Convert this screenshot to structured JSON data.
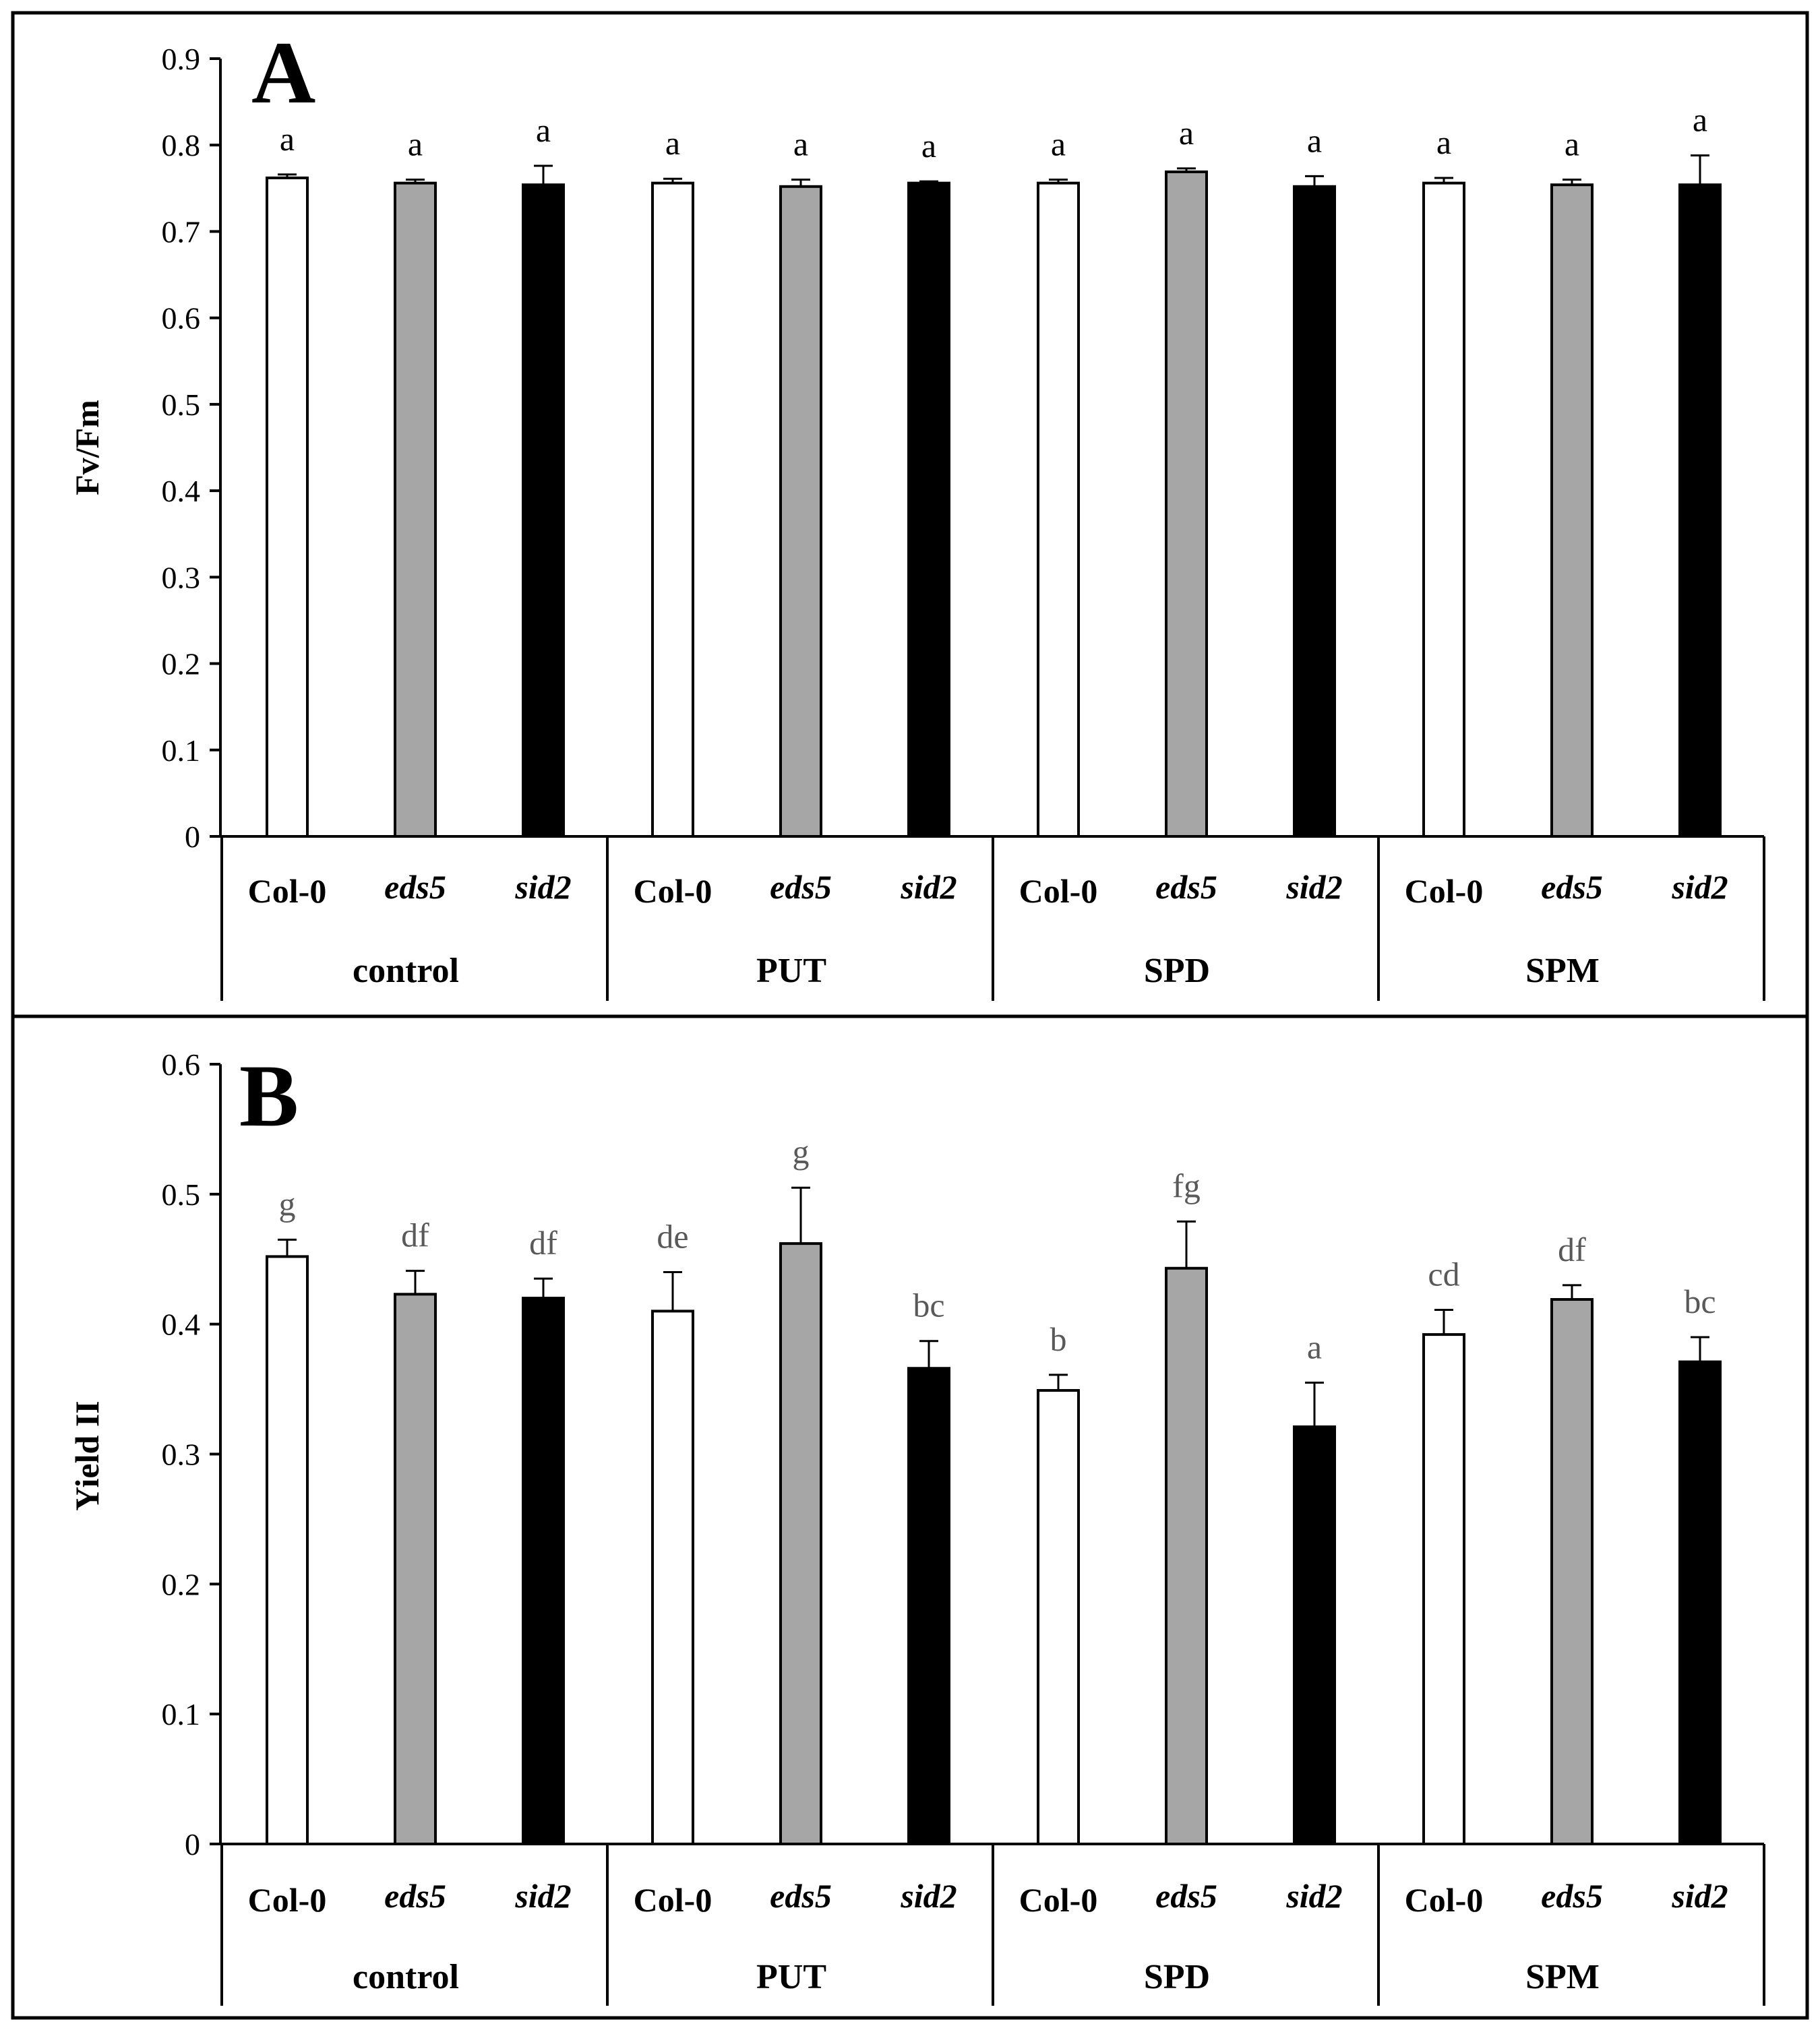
{
  "colors": {
    "Col-0": "#ffffff",
    "eds5": "#a6a6a6",
    "sid2": "#000000",
    "frame": "#000000",
    "sig_A": "#000000",
    "sig_B": "#595959"
  },
  "chart_data": [
    {
      "type": "bar",
      "panel_label": "A",
      "ylabel": "Fv/Fm",
      "ylim": [
        0,
        0.9
      ],
      "yticks": [
        "0",
        "0.1",
        "0.2",
        "0.3",
        "0.4",
        "0.5",
        "0.6",
        "0.7",
        "0.8",
        "0.9"
      ],
      "groups": [
        "control",
        "PUT",
        "SPD",
        "SPM"
      ],
      "genotypes": [
        "Col-0",
        "eds5",
        "sid2"
      ],
      "values": [
        0.762,
        0.756,
        0.754,
        0.756,
        0.752,
        0.756,
        0.756,
        0.769,
        0.752,
        0.756,
        0.754,
        0.754
      ],
      "errors": [
        0.004,
        0.004,
        0.022,
        0.005,
        0.008,
        0.002,
        0.004,
        0.004,
        0.012,
        0.006,
        0.006,
        0.034
      ],
      "significance": [
        "a",
        "a",
        "a",
        "a",
        "a",
        "a",
        "a",
        "a",
        "a",
        "a",
        "a",
        "a"
      ],
      "grid": false
    },
    {
      "type": "bar",
      "panel_label": "B",
      "ylabel": "Yield II",
      "ylim": [
        0,
        0.6
      ],
      "yticks": [
        "0",
        "0.1",
        "0.2",
        "0.3",
        "0.4",
        "0.5",
        "0.6"
      ],
      "groups": [
        "control",
        "PUT",
        "SPD",
        "SPM"
      ],
      "genotypes": [
        "Col-0",
        "eds5",
        "sid2"
      ],
      "values": [
        0.452,
        0.423,
        0.42,
        0.41,
        0.462,
        0.366,
        0.349,
        0.443,
        0.321,
        0.392,
        0.419,
        0.371
      ],
      "errors": [
        0.013,
        0.018,
        0.015,
        0.03,
        0.043,
        0.021,
        0.012,
        0.036,
        0.034,
        0.019,
        0.011,
        0.019
      ],
      "significance": [
        "g",
        "df",
        "df",
        "de",
        "g",
        "bc",
        "b",
        "fg",
        "a",
        "cd",
        "df",
        "bc"
      ],
      "grid": false
    }
  ]
}
